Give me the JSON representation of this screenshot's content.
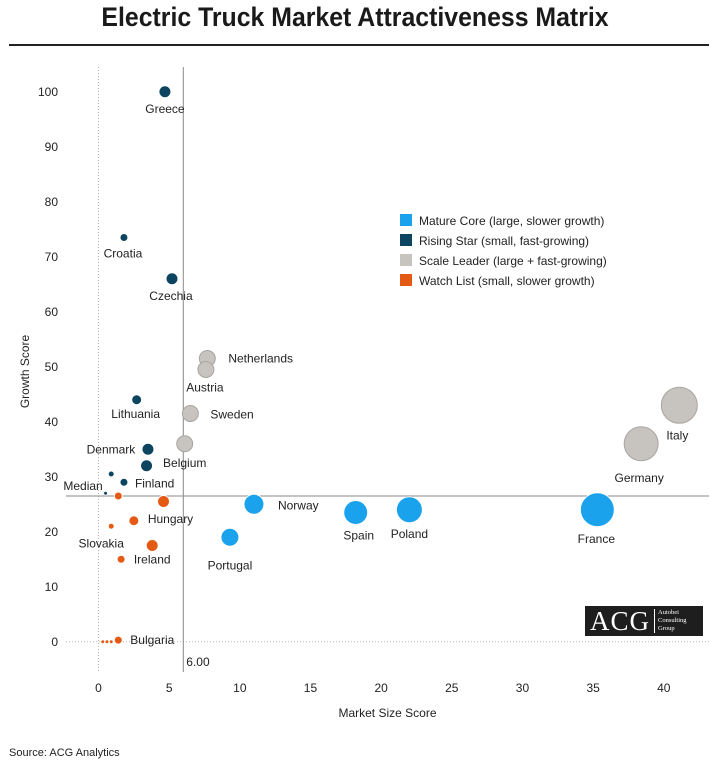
{
  "header": {
    "title": "Electric Truck Market Attractiveness Matrix"
  },
  "footer": {
    "source": "Source: ACG Analytics"
  },
  "logo": {
    "mark": "ACG",
    "line1": "Autobei",
    "line2": "Consulting",
    "line3": "Group"
  },
  "chart_data": {
    "type": "scatter",
    "title": "Electric Truck Market Attractiveness Matrix",
    "xlabel": "Market Size Score",
    "ylabel": "Growth Score",
    "xlim": [
      -2.3,
      43.2
    ],
    "ylim": [
      -5.5,
      104.5
    ],
    "xticks": [
      0,
      5,
      10,
      15,
      20,
      25,
      30,
      35,
      40
    ],
    "yticks": [
      0,
      10,
      20,
      30,
      40,
      50,
      60,
      70,
      80,
      90,
      100
    ],
    "grid": false,
    "legend_position": "upper-right",
    "reference_lines": {
      "vertical_x": 6.0,
      "vertical_label": "6.00",
      "horizontal_y": 26.5,
      "horizontal_label": "Median",
      "zero_lines": true
    },
    "series": [
      {
        "name": "Mature Core (large, slower growth)",
        "color": "#1aa3ec",
        "points": [
          {
            "label": "Norway",
            "x": 11.0,
            "y": 25.0,
            "size": 10
          },
          {
            "label": "Portugal",
            "x": 9.3,
            "y": 19.0,
            "size": 9
          },
          {
            "label": "Spain",
            "x": 18.2,
            "y": 23.5,
            "size": 12
          },
          {
            "label": "Poland",
            "x": 22.0,
            "y": 24.0,
            "size": 13
          },
          {
            "label": "France",
            "x": 35.3,
            "y": 24.0,
            "size": 17
          }
        ]
      },
      {
        "name": "Rising Star (small, fast-growing)",
        "color": "#0d4560",
        "points": [
          {
            "label": "Greece",
            "x": 4.7,
            "y": 100.0,
            "size": 6
          },
          {
            "label": "Croatia",
            "x": 1.8,
            "y": 73.5,
            "size": 4
          },
          {
            "label": "Czechia",
            "x": 5.2,
            "y": 66.0,
            "size": 6
          },
          {
            "label": "Lithuania",
            "x": 2.7,
            "y": 44.0,
            "size": 5
          },
          {
            "label": "Denmark",
            "x": 3.5,
            "y": 35.0,
            "size": 6
          },
          {
            "label": "",
            "x": 3.4,
            "y": 32.0,
            "size": 6
          },
          {
            "label": "",
            "x": 0.9,
            "y": 30.5,
            "size": 3
          },
          {
            "label": "Finland",
            "x": 1.8,
            "y": 29.0,
            "size": 4
          },
          {
            "label": "",
            "x": 0.5,
            "y": 27.0,
            "size": 2
          }
        ]
      },
      {
        "name": "Scale Leader (large + fast-growing)",
        "color": "#c7c3bf",
        "points": [
          {
            "label": "Netherlands",
            "x": 7.7,
            "y": 51.5,
            "size": 8
          },
          {
            "label": "Austria",
            "x": 7.6,
            "y": 49.5,
            "size": 8
          },
          {
            "label": "Sweden",
            "x": 6.5,
            "y": 41.5,
            "size": 8
          },
          {
            "label": "Belgium",
            "x": 6.1,
            "y": 36.0,
            "size": 8
          },
          {
            "label": "Germany",
            "x": 38.4,
            "y": 36.0,
            "size": 17
          },
          {
            "label": "Italy",
            "x": 41.1,
            "y": 43.0,
            "size": 18
          }
        ]
      },
      {
        "name": "Watch List (small, slower growth)",
        "color": "#e45a14",
        "points": [
          {
            "label": "",
            "x": 4.6,
            "y": 25.5,
            "size": 6
          },
          {
            "label": "",
            "x": 1.4,
            "y": 26.5,
            "size": 4
          },
          {
            "label": "Hungary",
            "x": 2.5,
            "y": 22.0,
            "size": 5
          },
          {
            "label": "Slovakia",
            "x": 0.9,
            "y": 21.0,
            "size": 3
          },
          {
            "label": "Ireland",
            "x": 3.8,
            "y": 17.5,
            "size": 6
          },
          {
            "label": "",
            "x": 1.6,
            "y": 15.0,
            "size": 4
          },
          {
            "label": "Bulgaria",
            "x": 1.4,
            "y": 0.3,
            "size": 4
          },
          {
            "label": "",
            "x": 0.3,
            "y": 0.0,
            "size": 2
          },
          {
            "label": "",
            "x": 0.6,
            "y": 0.0,
            "size": 2
          },
          {
            "label": "",
            "x": 0.9,
            "y": 0.0,
            "size": 2
          }
        ]
      }
    ]
  }
}
